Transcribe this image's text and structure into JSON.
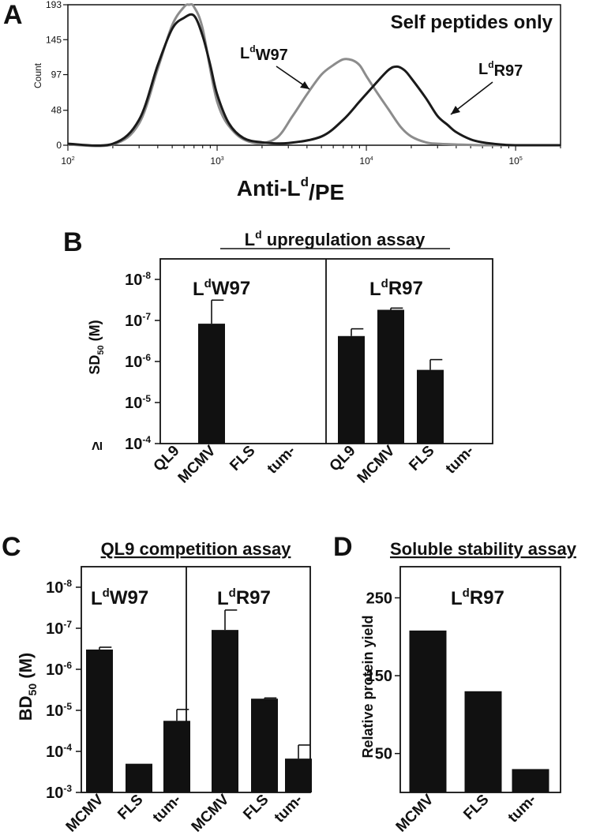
{
  "panels": {
    "a": {
      "label": "A",
      "annotation": "Self peptides only",
      "ylabel": "Count",
      "xlabel": "Anti-L",
      "xlabel_sup": "d",
      "xlabel_suffix": "/PE",
      "callouts": [
        {
          "base": "L",
          "sup": "d",
          "rest": "W97"
        },
        {
          "base": "L",
          "sup": "d",
          "rest": "R97"
        }
      ]
    },
    "b": {
      "label": "B",
      "title": "L",
      "title_sup": "d",
      "title_rest": " upregulation assay",
      "ylabel": "SD",
      "ylabel_sub": "50",
      "ylabel_unit": " (M)",
      "floor_prefix": "≥"
    },
    "c": {
      "label": "C",
      "title": "QL9 competition assay",
      "ylabel": "BD",
      "ylabel_sub": "50",
      "ylabel_unit": " (M)"
    },
    "d": {
      "label": "D",
      "title": "Soluble stability assay",
      "ylabel": "Relative protein yield"
    }
  },
  "chart_data": [
    {
      "panel": "A",
      "type": "line",
      "xscale": "log",
      "xlim": [
        100,
        200000
      ],
      "ylim": [
        0,
        193
      ],
      "x_ticks": [
        "10^2",
        "10^3",
        "10^4",
        "10^5"
      ],
      "y_ticks": [
        0,
        48,
        97,
        145,
        193
      ],
      "ylabel": "Count",
      "annotation": "Self peptides only",
      "series": [
        {
          "name": "LdW97",
          "color": "#8c8c8c",
          "x": [
            100,
            200,
            300,
            400,
            500,
            600,
            650,
            700,
            800,
            1000,
            1300,
            1800,
            2500,
            3200,
            4000,
            5000,
            6000,
            7000,
            8000,
            9000,
            10000,
            12000,
            14000,
            17000,
            20000,
            25000,
            30000,
            40000,
            60000,
            100000,
            200000
          ],
          "y": [
            1,
            1,
            30,
            105,
            165,
            190,
            193,
            190,
            160,
            60,
            18,
            3,
            10,
            40,
            70,
            97,
            110,
            118,
            117,
            110,
            95,
            70,
            50,
            25,
            12,
            4,
            2,
            1,
            0,
            0,
            0
          ]
        },
        {
          "name": "LdR97",
          "color": "#1a1a1a",
          "x": [
            100,
            200,
            300,
            400,
            500,
            600,
            700,
            800,
            900,
            1000,
            1200,
            1500,
            2000,
            3000,
            5000,
            7000,
            9000,
            11000,
            14000,
            16000,
            18000,
            20000,
            25000,
            30000,
            35000,
            40000,
            50000,
            60000,
            80000,
            100000,
            200000
          ],
          "y": [
            2,
            2,
            35,
            110,
            160,
            175,
            178,
            150,
            110,
            70,
            30,
            10,
            4,
            3,
            12,
            35,
            60,
            80,
            103,
            108,
            103,
            92,
            65,
            40,
            28,
            18,
            8,
            4,
            1,
            0,
            0
          ]
        }
      ]
    },
    {
      "panel": "B",
      "type": "bar",
      "title": "Ld upregulation assay",
      "ylabel": "SD50 (M)",
      "yscale": "log-inverted",
      "y_ticks": [
        "≥ 10^-4",
        "10^-5",
        "10^-6",
        "10^-7",
        "10^-8"
      ],
      "groups": [
        {
          "name": "LdW97",
          "categories": [
            "QL9",
            "MCMV",
            "FLS",
            "tum-"
          ],
          "values": [
            0.0001,
            1.2e-07,
            0.0001,
            0.0001
          ],
          "errors_upper": [
            null,
            3.2e-08,
            null,
            null
          ]
        },
        {
          "name": "LdR97",
          "categories": [
            "QL9",
            "MCMV",
            "FLS",
            "tum-"
          ],
          "values": [
            2.4e-07,
            5.5e-08,
            1.6e-06,
            0.0001
          ],
          "errors_upper": [
            1.6e-07,
            5e-08,
            9e-07,
            null
          ]
        }
      ]
    },
    {
      "panel": "C",
      "type": "bar",
      "title": "QL9 competition assay",
      "ylabel": "BD50 (M)",
      "yscale": "log-inverted",
      "y_ticks": [
        "10^-3",
        "10^-4",
        "10^-5",
        "10^-6",
        "10^-7",
        "10^-8"
      ],
      "groups": [
        {
          "name": "LdW97",
          "categories": [
            "MCMV",
            "FLS",
            "tum-"
          ],
          "values": [
            3.3e-07,
            0.0002,
            1.8e-05
          ],
          "errors_upper": [
            2.9e-07,
            null,
            9.5e-06
          ]
        },
        {
          "name": "LdR97",
          "categories": [
            "MCMV",
            "FLS",
            "tum-"
          ],
          "values": [
            1.1e-07,
            5.2e-06,
            0.00015
          ],
          "errors_upper": [
            3.6e-08,
            5e-06,
            7e-05
          ]
        }
      ]
    },
    {
      "panel": "D",
      "type": "bar",
      "title": "Soluble stability assay",
      "ylabel": "Relative protein yield",
      "ylim": [
        0,
        290
      ],
      "y_ticks": [
        50,
        150,
        250
      ],
      "groups": [
        {
          "name": "LdR97",
          "categories": [
            "MCMV",
            "FLS",
            "tum-"
          ],
          "values": [
            208,
            130,
            30
          ]
        }
      ]
    }
  ]
}
